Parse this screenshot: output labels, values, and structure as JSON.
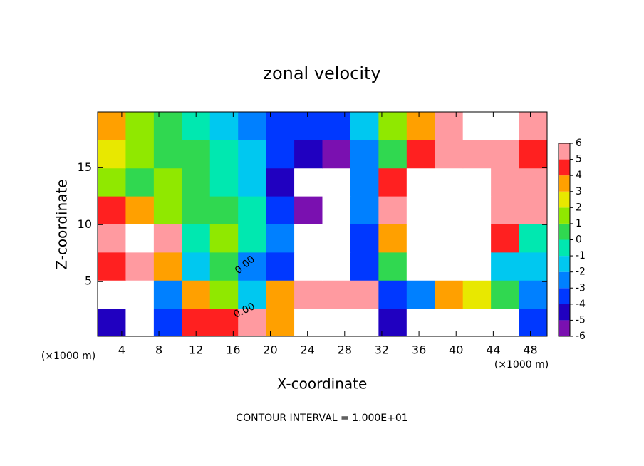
{
  "chart_data": {
    "type": "heatmap",
    "title": "zonal velocity",
    "x_label": "X-coordinate",
    "y_label": "Z-coordinate",
    "x_unit": "(×1000 m)",
    "footer": "CONTOUR INTERVAL = 1.000E+01",
    "contour_labels": [
      "0.00",
      "0.00"
    ],
    "xlim": [
      1.4,
      49.8
    ],
    "ylim": [
      0.2,
      19.9
    ],
    "xticks": [
      4,
      8,
      12,
      16,
      20,
      24,
      28,
      32,
      36,
      40,
      44,
      48
    ],
    "yticks": [
      5,
      10,
      15
    ],
    "levels": [
      -6,
      -5,
      -4,
      -3,
      -2,
      -1,
      0,
      1,
      2,
      3,
      4,
      5,
      6
    ],
    "colors": [
      "#7a10b0",
      "#2000c0",
      "#0038ff",
      "#0080ff",
      "#00c8f0",
      "#00e8b0",
      "#30d850",
      "#90e800",
      "#e8e800",
      "#ffa000",
      "#ff2020",
      "#ff9aa0"
    ],
    "out_of_range_color": "#ffffff",
    "z": [
      [
        -5,
        -7,
        -4,
        4,
        4,
        5,
        3,
        7,
        7,
        7,
        -5,
        -7,
        -7,
        -7,
        -7,
        -4
      ],
      [
        -7,
        -7,
        -3,
        3,
        1,
        -2,
        3,
        5,
        5,
        5,
        -4,
        -3,
        3,
        2,
        0,
        -3
      ],
      [
        4,
        5,
        3,
        -2,
        0,
        -3,
        -4,
        7,
        7,
        -4,
        0,
        7,
        7,
        7,
        -2,
        -2
      ],
      [
        6,
        7,
        5,
        -1,
        1,
        -1,
        -3,
        7,
        7,
        -4,
        3,
        7,
        7,
        7,
        4,
        -1
      ],
      [
        4,
        3,
        1,
        0,
        0,
        -1,
        -4,
        -6,
        7,
        -3,
        6,
        7,
        7,
        7,
        5,
        5
      ],
      [
        1,
        0,
        1,
        0,
        -1,
        -2,
        -5,
        7,
        7,
        -3,
        4,
        7,
        7,
        7,
        6,
        5
      ],
      [
        2,
        1,
        0,
        0,
        -1,
        -2,
        -4,
        -5,
        -6,
        -3,
        0,
        4,
        5,
        6,
        5,
        4
      ],
      [
        3,
        1,
        0,
        -1,
        -2,
        -3,
        -4,
        -4,
        -4,
        -2,
        1,
        3,
        5,
        7,
        7,
        5
      ]
    ]
  }
}
